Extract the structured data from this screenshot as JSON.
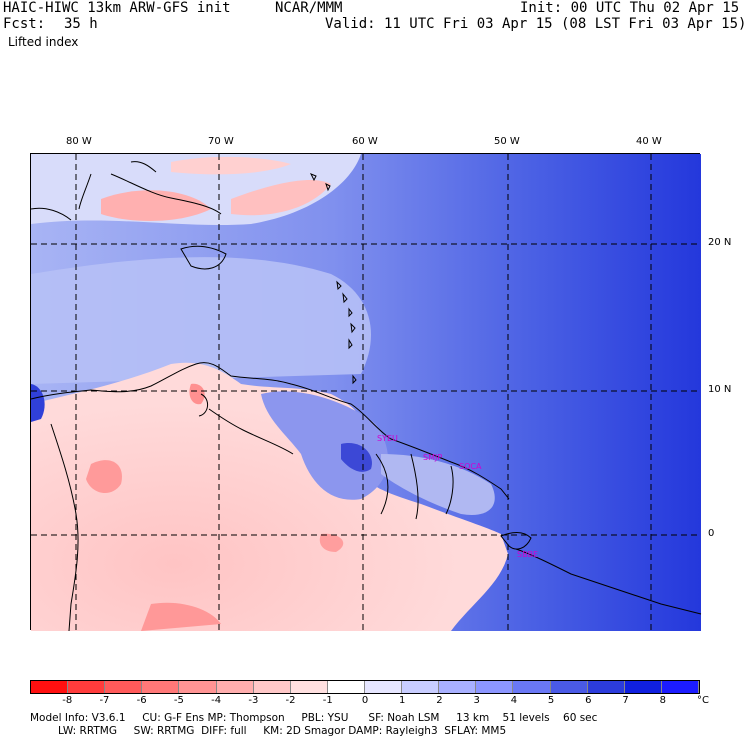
{
  "header": {
    "model_title": "HAIC-HIWC 13km ARW-GFS init",
    "org": "NCAR/MMM",
    "init": "Init: 00 UTC Thu 02 Apr 15",
    "fcst_label": "Fcst:",
    "fcst_value": "35 h",
    "valid": "Valid: 11 UTC Fri 03 Apr 15 (08 LST Fri 03 Apr 15)",
    "field": "Lifted index"
  },
  "map": {
    "lon_labels": [
      "80 W",
      "70 W",
      "60 W",
      "50 W",
      "40 W"
    ],
    "lat_labels": [
      "20 N",
      "10 N",
      "0"
    ],
    "sites": [
      "SYEU",
      "SMJP",
      "SOCA",
      "SBBE"
    ]
  },
  "colorbar": {
    "labels": [
      "-8",
      "-7",
      "-6",
      "-5",
      "-4",
      "-3",
      "-2",
      "-1",
      "0",
      "1",
      "2",
      "3",
      "4",
      "5",
      "6",
      "7",
      "8"
    ],
    "unit": "°C",
    "colors": [
      "#ff1010",
      "#ff3c3c",
      "#ff5a5a",
      "#ff7878",
      "#ff9494",
      "#ffaeae",
      "#ffc8c8",
      "#ffe0e0",
      "#ffffff",
      "#e6e6ff",
      "#c8cdff",
      "#a8b0ff",
      "#8c96ff",
      "#6a78f5",
      "#4a5ae6",
      "#2c3cdc",
      "#1020e0"
    ]
  },
  "model_info": {
    "line1": "Model Info: V3.6.1     CU: G-F Ens MP: Thompson     PBL: YSU      SF: Noah LSM     13 km    51 levels    60 sec",
    "line2": "LW: RRTMG     SW: RRTMG  DIFF: full     KM: 2D Smagor DAMP: Rayleigh3  SFLAY: MM5"
  }
}
